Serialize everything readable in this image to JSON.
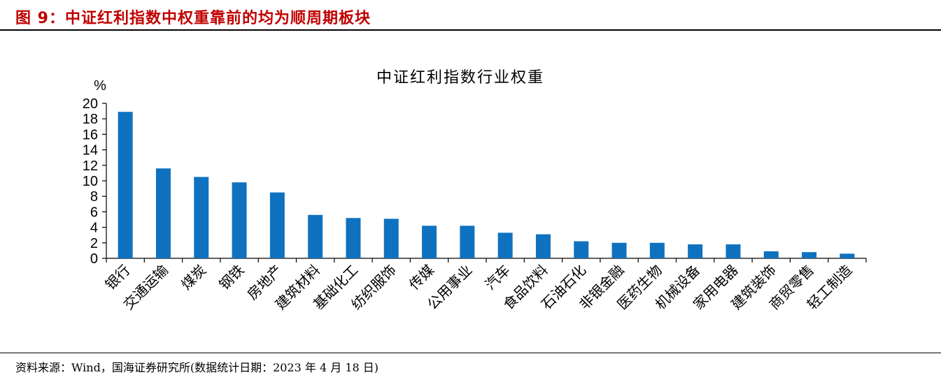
{
  "figure": {
    "title": "图 9：中证红利指数中权重靠前的均为顺周期板块",
    "source": "资料来源：Wind，国海证券研究所(数据统计日期：2023 年 4 月 18 日)"
  },
  "chart_data": {
    "type": "bar",
    "title": "中证红利指数行业权重",
    "ylabel": "%",
    "xlabel": "",
    "ylim": [
      0,
      20
    ],
    "yticks": [
      0,
      2,
      4,
      6,
      8,
      10,
      12,
      14,
      16,
      18,
      20
    ],
    "categories": [
      "银行",
      "交通运输",
      "煤炭",
      "钢铁",
      "房地产",
      "建筑材料",
      "基础化工",
      "纺织服饰",
      "传媒",
      "公用事业",
      "汽车",
      "食品饮料",
      "石油石化",
      "非银金融",
      "医药生物",
      "机械设备",
      "家用电器",
      "建筑装饰",
      "商贸零售",
      "轻工制造"
    ],
    "values": [
      18.9,
      11.6,
      10.5,
      9.8,
      8.5,
      5.6,
      5.2,
      5.1,
      4.2,
      4.2,
      3.3,
      3.1,
      2.2,
      2.0,
      2.0,
      1.8,
      1.8,
      0.9,
      0.8,
      0.6
    ],
    "bar_color": "#0f72c0",
    "grid": false,
    "legend": "none"
  }
}
